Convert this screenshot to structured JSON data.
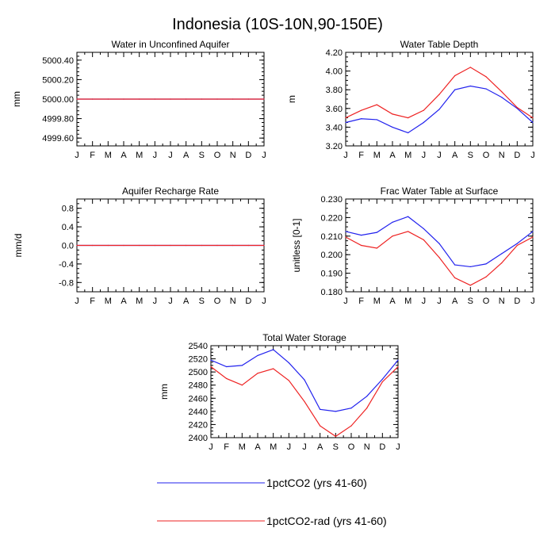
{
  "page_title": "Indonesia (10S-10N,90-150E)",
  "legend": [
    {
      "label": "1pctCO2 (yrs 41-60)",
      "color": "#2222ee"
    },
    {
      "label": "1pctCO2-rad (yrs 41-60)",
      "color": "#ee2222"
    }
  ],
  "chart_data": [
    {
      "type": "line",
      "title": "Water in Unconfined Aquifer",
      "xlabel": "",
      "ylabel": "mm",
      "x": [
        "J",
        "F",
        "M",
        "A",
        "M",
        "J",
        "J",
        "A",
        "S",
        "O",
        "N",
        "D",
        "J"
      ],
      "ylim": [
        4999.52,
        5000.48
      ],
      "yticks": [
        4999.6,
        4999.8,
        5000.0,
        5000.2,
        5000.4
      ],
      "ytick_labels": [
        "4999.60",
        "4999.80",
        "5000.00",
        "5000.20",
        "5000.40"
      ],
      "minor_step": 0.04,
      "series": [
        {
          "name": "1pctCO2 (yrs 41-60)",
          "color": "#2222ee",
          "values": [
            5000,
            5000,
            5000,
            5000,
            5000,
            5000,
            5000,
            5000,
            5000,
            5000,
            5000,
            5000,
            5000
          ]
        },
        {
          "name": "1pctCO2-rad (yrs 41-60)",
          "color": "#ee2222",
          "values": [
            5000,
            5000,
            5000,
            5000,
            5000,
            5000,
            5000,
            5000,
            5000,
            5000,
            5000,
            5000,
            5000
          ]
        }
      ]
    },
    {
      "type": "line",
      "title": "Water Table Depth",
      "xlabel": "",
      "ylabel": "m",
      "x": [
        "J",
        "F",
        "M",
        "A",
        "M",
        "J",
        "J",
        "A",
        "S",
        "O",
        "N",
        "D",
        "J"
      ],
      "ylim": [
        3.2,
        4.2
      ],
      "yticks": [
        3.2,
        3.4,
        3.6,
        3.8,
        4.0,
        4.2
      ],
      "ytick_labels": [
        "3.20",
        "3.40",
        "3.60",
        "3.80",
        "4.00",
        "4.20"
      ],
      "minor_step": 0.05,
      "series": [
        {
          "name": "1pctCO2 (yrs 41-60)",
          "color": "#2222ee",
          "values": [
            3.45,
            3.49,
            3.48,
            3.4,
            3.34,
            3.45,
            3.59,
            3.8,
            3.84,
            3.81,
            3.72,
            3.6,
            3.45
          ]
        },
        {
          "name": "1pctCO2-rad (yrs 41-60)",
          "color": "#ee2222",
          "values": [
            3.5,
            3.58,
            3.64,
            3.54,
            3.5,
            3.58,
            3.75,
            3.95,
            4.04,
            3.94,
            3.78,
            3.61,
            3.5
          ]
        }
      ]
    },
    {
      "type": "line",
      "title": "Aquifer Recharge Rate",
      "xlabel": "",
      "ylabel": "mm/d",
      "x": [
        "J",
        "F",
        "M",
        "A",
        "M",
        "J",
        "J",
        "A",
        "S",
        "O",
        "N",
        "D",
        "J"
      ],
      "ylim": [
        -1.0,
        1.0
      ],
      "yticks": [
        -0.8,
        -0.4,
        0.0,
        0.4,
        0.8
      ],
      "ytick_labels": [
        "-0.8",
        "-0.4",
        "0.0",
        "0.4",
        "0.8"
      ],
      "minor_step": 0.1,
      "series": [
        {
          "name": "1pctCO2 (yrs 41-60)",
          "color": "#2222ee",
          "values": [
            0,
            0,
            0,
            0,
            0,
            0,
            0,
            0,
            0,
            0,
            0,
            0,
            0
          ]
        },
        {
          "name": "1pctCO2-rad (yrs 41-60)",
          "color": "#ee2222",
          "values": [
            0,
            0,
            0,
            0,
            0,
            0,
            0,
            0,
            0,
            0,
            0,
            0,
            0
          ]
        }
      ]
    },
    {
      "type": "line",
      "title": "Frac Water Table at Surface",
      "xlabel": "",
      "ylabel": "unitless [0-1]",
      "x": [
        "J",
        "F",
        "M",
        "A",
        "M",
        "J",
        "J",
        "A",
        "S",
        "O",
        "N",
        "D",
        "J"
      ],
      "ylim": [
        0.18,
        0.23
      ],
      "yticks": [
        0.18,
        0.19,
        0.2,
        0.21,
        0.22,
        0.23
      ],
      "ytick_labels": [
        "0.180",
        "0.190",
        "0.200",
        "0.210",
        "0.220",
        "0.230"
      ],
      "minor_step": 0.0025,
      "series": [
        {
          "name": "1pctCO2 (yrs 41-60)",
          "color": "#2222ee",
          "values": [
            0.2125,
            0.2105,
            0.212,
            0.2175,
            0.2205,
            0.214,
            0.206,
            0.1945,
            0.1935,
            0.195,
            0.2005,
            0.206,
            0.2125
          ]
        },
        {
          "name": "1pctCO2-rad (yrs 41-60)",
          "color": "#ee2222",
          "values": [
            0.2095,
            0.205,
            0.2035,
            0.21,
            0.2125,
            0.208,
            0.1985,
            0.1875,
            0.1835,
            0.188,
            0.1955,
            0.205,
            0.2095
          ]
        }
      ]
    },
    {
      "type": "line",
      "title": "Total Water Storage",
      "xlabel": "",
      "ylabel": "mm",
      "x": [
        "J",
        "F",
        "M",
        "A",
        "M",
        "J",
        "J",
        "A",
        "S",
        "O",
        "N",
        "D",
        "J"
      ],
      "ylim": [
        2400,
        2540
      ],
      "yticks": [
        2400,
        2420,
        2440,
        2460,
        2480,
        2500,
        2520,
        2540
      ],
      "ytick_labels": [
        "2400",
        "2420",
        "2440",
        "2460",
        "2480",
        "2500",
        "2520",
        "2540"
      ],
      "minor_step": 5,
      "series": [
        {
          "name": "1pctCO2 (yrs 41-60)",
          "color": "#2222ee",
          "values": [
            2518,
            2508,
            2510,
            2525,
            2534,
            2514,
            2488,
            2443,
            2440,
            2445,
            2463,
            2489,
            2518
          ]
        },
        {
          "name": "1pctCO2-rad (yrs 41-60)",
          "color": "#ee2222",
          "values": [
            2508,
            2490,
            2480,
            2498,
            2505,
            2487,
            2455,
            2418,
            2402,
            2418,
            2445,
            2485,
            2508
          ]
        }
      ]
    }
  ]
}
